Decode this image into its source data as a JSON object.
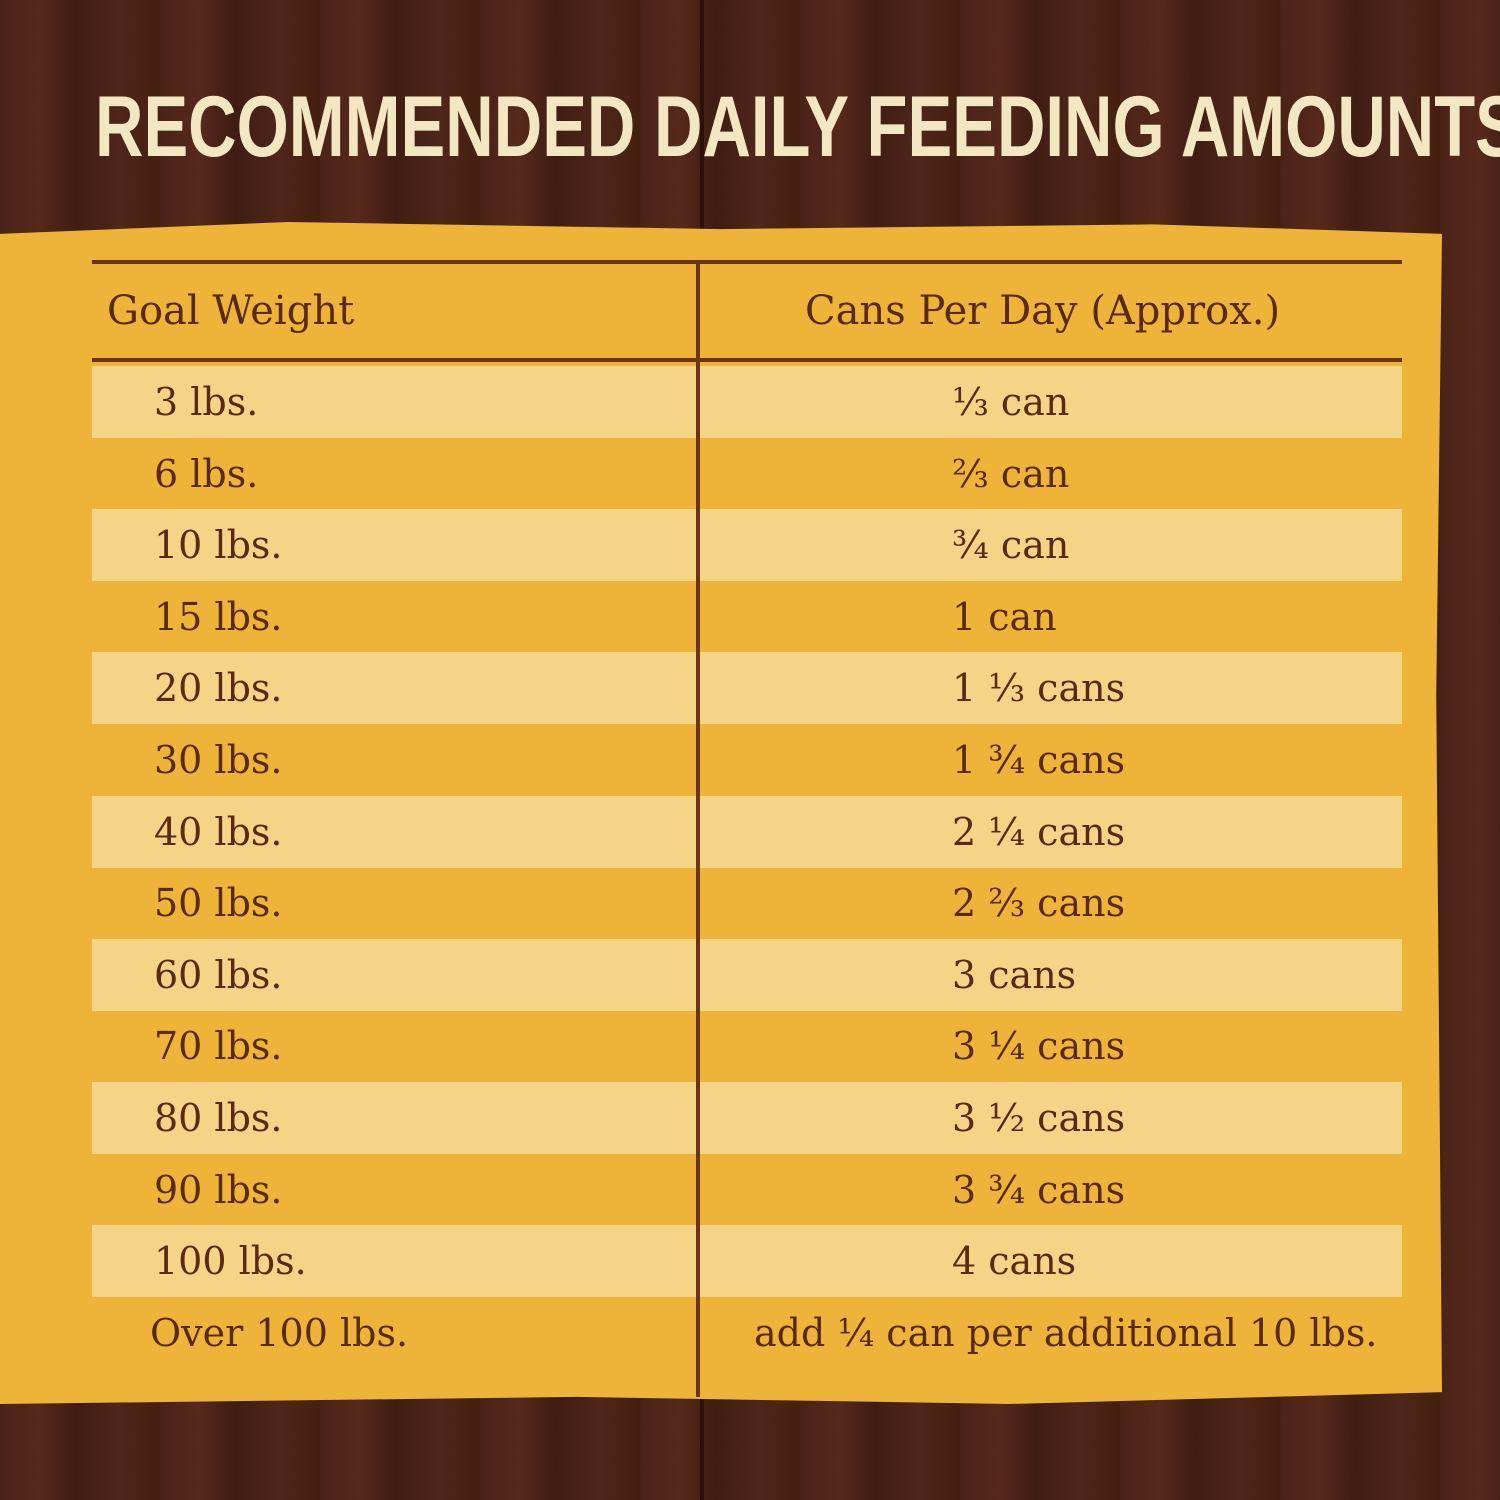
{
  "title": "RECOMMENDED DAILY FEEDING AMOUNTS:",
  "colors": {
    "background": "#4a2317",
    "panel": "#eeb43a",
    "stripe": "#f5d488",
    "text": "#5a2a14",
    "title": "#f3e6c3"
  },
  "table": {
    "headers": [
      "Goal Weight",
      "Cans Per Day (Approx.)"
    ],
    "rows": [
      [
        "3 lbs.",
        "⅓ can"
      ],
      [
        "6 lbs.",
        "⅔ can"
      ],
      [
        "10 lbs.",
        "¾ can"
      ],
      [
        "15 lbs.",
        "1 can"
      ],
      [
        "20 lbs.",
        "1 ⅓ cans"
      ],
      [
        "30 lbs.",
        "1 ¾ cans"
      ],
      [
        "40 lbs.",
        "2 ¼ cans"
      ],
      [
        "50 lbs.",
        "2 ⅔ cans"
      ],
      [
        "60 lbs.",
        "3 cans"
      ],
      [
        "70 lbs.",
        "3 ¼ cans"
      ],
      [
        "80 lbs.",
        "3 ½ cans"
      ],
      [
        "90 lbs.",
        "3 ¾ cans"
      ],
      [
        "100 lbs.",
        "4 cans"
      ],
      [
        "Over 100 lbs.",
        "add ¼ can per additional 10 lbs."
      ]
    ]
  }
}
